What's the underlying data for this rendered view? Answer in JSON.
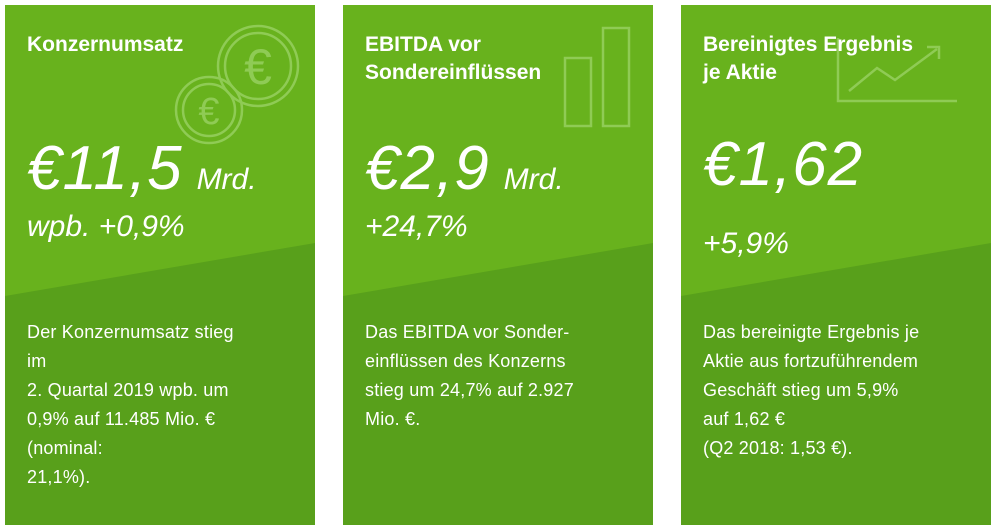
{
  "cards": [
    {
      "title": "Konzernumsatz",
      "value": "€11,5",
      "unit": "Mrd.",
      "change": "wpb. +0,9%",
      "description": "Der Konzernumsatz stieg\nim\n2. Quartal 2019 wpb. um\n0,9% auf 11.485 Mio. €\n(nominal:\n21,1%).",
      "icon": "euro-coins-icon"
    },
    {
      "title": "EBITDA vor\nSondereinflüssen",
      "value": "€2,9",
      "unit": "Mrd.",
      "change": "+24,7%",
      "description": "Das EBITDA vor Sonder-\neinflüssen des Konzerns\nstieg um 24,7% auf 2.927\nMio. €.",
      "icon": "bar-chart-icon"
    },
    {
      "title": "Bereinigtes Ergebnis\nje Aktie",
      "value": "€1,62",
      "unit": "",
      "change": "+5,9%",
      "description": "Das bereinigte Ergebnis je\nAktie aus fortzuführendem\nGeschäft stieg um 5,9%\nauf 1,62 €\n(Q2 2018: 1,53 €).",
      "icon": "trend-chart-icon"
    }
  ],
  "colors": {
    "card_upper": "#68b21d",
    "card_lower": "#58a01b",
    "text": "#ffffff"
  }
}
